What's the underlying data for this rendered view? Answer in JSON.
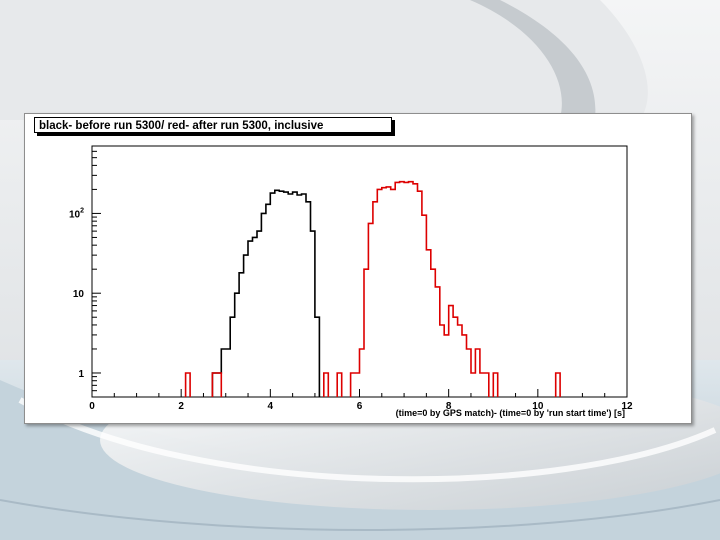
{
  "colors": {
    "before_series": "#000000",
    "after_series": "#dd0000",
    "frame_border": "#8e8e8e"
  },
  "chart_data": {
    "type": "histogram",
    "title": "black- before run 5300/ red- after run 5300, inclusive",
    "xlabel": "(time=0 by GPS match)- (time=0 by 'run start time') [s]",
    "ylabel": "",
    "xlim": [
      0,
      12
    ],
    "ylim": [
      0.5,
      700
    ],
    "y_scale": "log",
    "x_ticks": [
      "0",
      "2",
      "4",
      "6",
      "8",
      "10",
      "12"
    ],
    "y_ticks": [
      {
        "value": 1,
        "label": "1"
      },
      {
        "value": 10,
        "label": "10"
      },
      {
        "value": 100,
        "label": "10",
        "sup": "2"
      }
    ],
    "bin_width": 0.1,
    "series": [
      {
        "color": "#000000",
        "bins": [
          [
            2.7,
            1
          ],
          [
            2.8,
            1
          ],
          [
            2.9,
            2
          ],
          [
            3.0,
            2
          ],
          [
            3.1,
            5
          ],
          [
            3.2,
            10
          ],
          [
            3.3,
            18
          ],
          [
            3.4,
            30
          ],
          [
            3.5,
            45
          ],
          [
            3.6,
            50
          ],
          [
            3.7,
            60
          ],
          [
            3.8,
            100
          ],
          [
            3.9,
            130
          ],
          [
            4.0,
            180
          ],
          [
            4.1,
            195
          ],
          [
            4.2,
            190
          ],
          [
            4.3,
            185
          ],
          [
            4.4,
            175
          ],
          [
            4.5,
            185
          ],
          [
            4.6,
            170
          ],
          [
            4.7,
            175
          ],
          [
            4.8,
            140
          ],
          [
            4.9,
            60
          ],
          [
            5.0,
            5
          ]
        ]
      },
      {
        "color": "#dd0000",
        "bins": [
          [
            2.1,
            1
          ],
          [
            2.7,
            1
          ],
          [
            2.8,
            1
          ],
          [
            5.2,
            1
          ],
          [
            5.5,
            1
          ],
          [
            5.8,
            1
          ],
          [
            5.9,
            1
          ],
          [
            6.0,
            2
          ],
          [
            6.1,
            20
          ],
          [
            6.2,
            75
          ],
          [
            6.3,
            140
          ],
          [
            6.4,
            200
          ],
          [
            6.5,
            210
          ],
          [
            6.6,
            215
          ],
          [
            6.7,
            200
          ],
          [
            6.8,
            245
          ],
          [
            6.9,
            250
          ],
          [
            7.0,
            245
          ],
          [
            7.1,
            250
          ],
          [
            7.2,
            235
          ],
          [
            7.3,
            190
          ],
          [
            7.4,
            95
          ],
          [
            7.5,
            35
          ],
          [
            7.6,
            20
          ],
          [
            7.7,
            12
          ],
          [
            7.8,
            4
          ],
          [
            7.9,
            3
          ],
          [
            8.0,
            7
          ],
          [
            8.1,
            5
          ],
          [
            8.2,
            4
          ],
          [
            8.3,
            3
          ],
          [
            8.4,
            2
          ],
          [
            8.5,
            1
          ],
          [
            8.6,
            2
          ],
          [
            8.7,
            1
          ],
          [
            8.8,
            1
          ],
          [
            9.0,
            1
          ],
          [
            10.4,
            1
          ]
        ]
      }
    ]
  }
}
